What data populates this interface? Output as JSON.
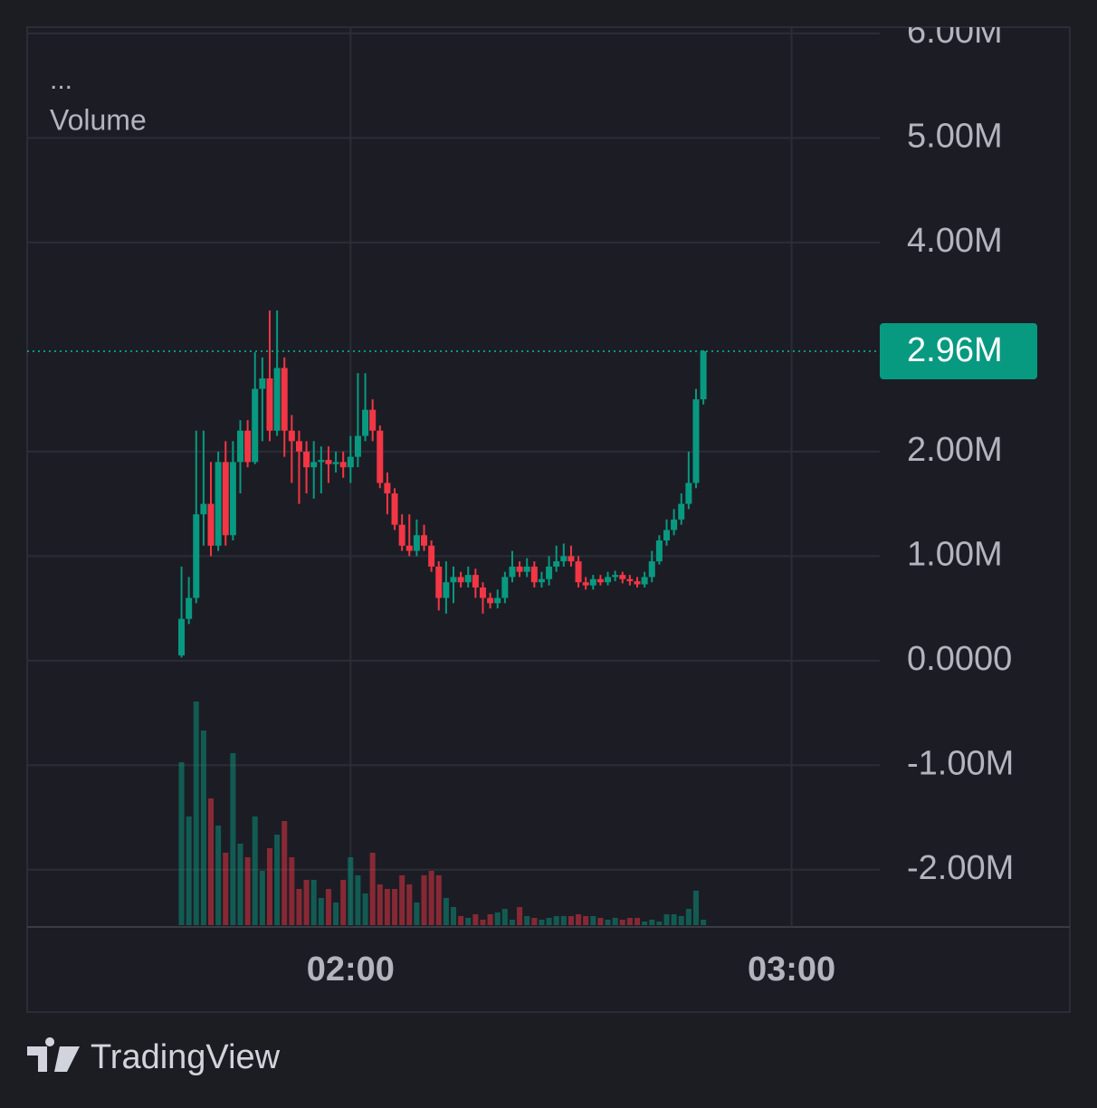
{
  "chart_data": {
    "type": "candlestick",
    "legend": [
      "...",
      "Volume"
    ],
    "brand": "TradingView",
    "up_color": "#089981",
    "down_color": "#f23645",
    "grid": true,
    "x": [
      "01:37",
      "01:38",
      "01:39",
      "01:40",
      "01:41",
      "01:42",
      "01:43",
      "01:44",
      "01:45",
      "01:46",
      "01:47",
      "01:48",
      "01:49",
      "01:50",
      "01:51",
      "01:52",
      "01:53",
      "01:54",
      "01:55",
      "01:56",
      "01:57",
      "01:58",
      "01:59",
      "02:00",
      "02:01",
      "02:02",
      "02:03",
      "02:04",
      "02:05",
      "02:06",
      "02:07",
      "02:08",
      "02:09",
      "02:10",
      "02:11",
      "02:12",
      "02:13",
      "02:14",
      "02:15",
      "02:16",
      "02:17",
      "02:18",
      "02:19",
      "02:20",
      "02:21",
      "02:22",
      "02:23",
      "02:24",
      "02:25",
      "02:26",
      "02:27",
      "02:28",
      "02:29",
      "02:30",
      "02:31",
      "02:32",
      "02:33",
      "02:34",
      "02:35",
      "02:36",
      "02:37",
      "02:38",
      "02:39",
      "02:40",
      "02:41",
      "02:42",
      "02:43",
      "02:44",
      "02:45",
      "02:46",
      "02:47",
      "02:48"
    ],
    "open": [
      50000,
      400000,
      600000,
      1400000,
      1500000,
      1100000,
      1900000,
      1200000,
      1900000,
      2200000,
      1900000,
      2600000,
      2700000,
      2200000,
      2800000,
      2200000,
      2100000,
      2000000,
      1850000,
      1900000,
      1920000,
      1880000,
      1900000,
      1850000,
      1950000,
      2150000,
      2400000,
      2200000,
      1700000,
      1600000,
      1300000,
      1100000,
      1050000,
      1200000,
      1100000,
      900000,
      600000,
      750000,
      800000,
      750000,
      820000,
      700000,
      600000,
      550000,
      600000,
      800000,
      900000,
      850000,
      900000,
      750000,
      780000,
      900000,
      950000,
      1000000,
      950000,
      750000,
      720000,
      780000,
      750000,
      800000,
      820000,
      780000,
      760000,
      730000,
      800000,
      950000,
      1150000,
      1250000,
      1350000,
      1500000,
      1700000,
      2500000
    ],
    "high": [
      900000,
      800000,
      2200000,
      2200000,
      1900000,
      2000000,
      2100000,
      2100000,
      2300000,
      2300000,
      2950000,
      2900000,
      3350000,
      3350000,
      2900000,
      2350000,
      2200000,
      2100000,
      2100000,
      2050000,
      2050000,
      2000000,
      2000000,
      2150000,
      2750000,
      2750000,
      2500000,
      2250000,
      1800000,
      1650000,
      1400000,
      1400000,
      1350000,
      1300000,
      1150000,
      950000,
      950000,
      900000,
      850000,
      900000,
      880000,
      750000,
      650000,
      680000,
      850000,
      1050000,
      950000,
      980000,
      950000,
      850000,
      1000000,
      1100000,
      1120000,
      1100000,
      1000000,
      800000,
      820000,
      820000,
      850000,
      860000,
      850000,
      820000,
      800000,
      850000,
      1050000,
      1200000,
      1350000,
      1450000,
      1600000,
      2000000,
      2600000,
      2970000
    ],
    "low": [
      30000,
      350000,
      550000,
      1100000,
      1000000,
      1050000,
      1100000,
      1150000,
      1600000,
      1850000,
      1880000,
      2100000,
      2100000,
      2150000,
      1950000,
      1700000,
      1500000,
      1600000,
      1550000,
      1600000,
      1700000,
      1800000,
      1750000,
      1700000,
      1850000,
      2100000,
      2100000,
      1650000,
      1400000,
      1250000,
      1050000,
      1000000,
      1000000,
      1050000,
      850000,
      480000,
      450000,
      550000,
      700000,
      700000,
      600000,
      450000,
      500000,
      500000,
      550000,
      750000,
      800000,
      800000,
      700000,
      700000,
      720000,
      850000,
      900000,
      900000,
      700000,
      680000,
      680000,
      720000,
      720000,
      760000,
      740000,
      720000,
      700000,
      700000,
      750000,
      920000,
      1100000,
      1200000,
      1300000,
      1450000,
      1650000,
      2450000
    ],
    "close": [
      400000,
      600000,
      1400000,
      1500000,
      1100000,
      1900000,
      1200000,
      1900000,
      2200000,
      1900000,
      2600000,
      2700000,
      2200000,
      2800000,
      2200000,
      2100000,
      2000000,
      1850000,
      1900000,
      1920000,
      1880000,
      1900000,
      1850000,
      1950000,
      2150000,
      2400000,
      2200000,
      1700000,
      1600000,
      1300000,
      1100000,
      1050000,
      1200000,
      1100000,
      900000,
      600000,
      750000,
      800000,
      750000,
      820000,
      700000,
      600000,
      550000,
      600000,
      800000,
      900000,
      850000,
      900000,
      750000,
      780000,
      900000,
      950000,
      1000000,
      950000,
      750000,
      720000,
      780000,
      750000,
      800000,
      820000,
      780000,
      760000,
      730000,
      800000,
      950000,
      1150000,
      1250000,
      1350000,
      1500000,
      1700000,
      2500000,
      2960000
    ],
    "volume": [
      180,
      120,
      247,
      215,
      140,
      110,
      80,
      190,
      90,
      75,
      120,
      60,
      85,
      100,
      115,
      75,
      40,
      50,
      50,
      30,
      40,
      25,
      50,
      75,
      55,
      35,
      80,
      45,
      40,
      40,
      55,
      45,
      25,
      55,
      60,
      55,
      30,
      20,
      10,
      8,
      12,
      6,
      12,
      14,
      18,
      6,
      20,
      10,
      8,
      6,
      8,
      10,
      10,
      10,
      12,
      10,
      10,
      8,
      6,
      8,
      6,
      8,
      8,
      4,
      6,
      4,
      12,
      12,
      10,
      18,
      38,
      6
    ],
    "volume_ylim": [
      0,
      250
    ],
    "last_price": {
      "value": 2960000,
      "label": "2.96M"
    },
    "xlim": [
      "01:16",
      "03:12"
    ],
    "xticks": [
      "02:00",
      "03:00"
    ],
    "ylim": [
      -2530000,
      6060000
    ],
    "yticks": [
      {
        "value": 6000000,
        "label": "6.00M"
      },
      {
        "value": 5000000,
        "label": "5.00M"
      },
      {
        "value": 4000000,
        "label": "4.00M"
      },
      {
        "value": 2000000,
        "label": "2.00M"
      },
      {
        "value": 1000000,
        "label": "1.00M"
      },
      {
        "value": 0,
        "label": "0.0000"
      },
      {
        "value": -1000000,
        "label": "-1.00M"
      },
      {
        "value": -2000000,
        "label": "-2.00M"
      }
    ]
  }
}
